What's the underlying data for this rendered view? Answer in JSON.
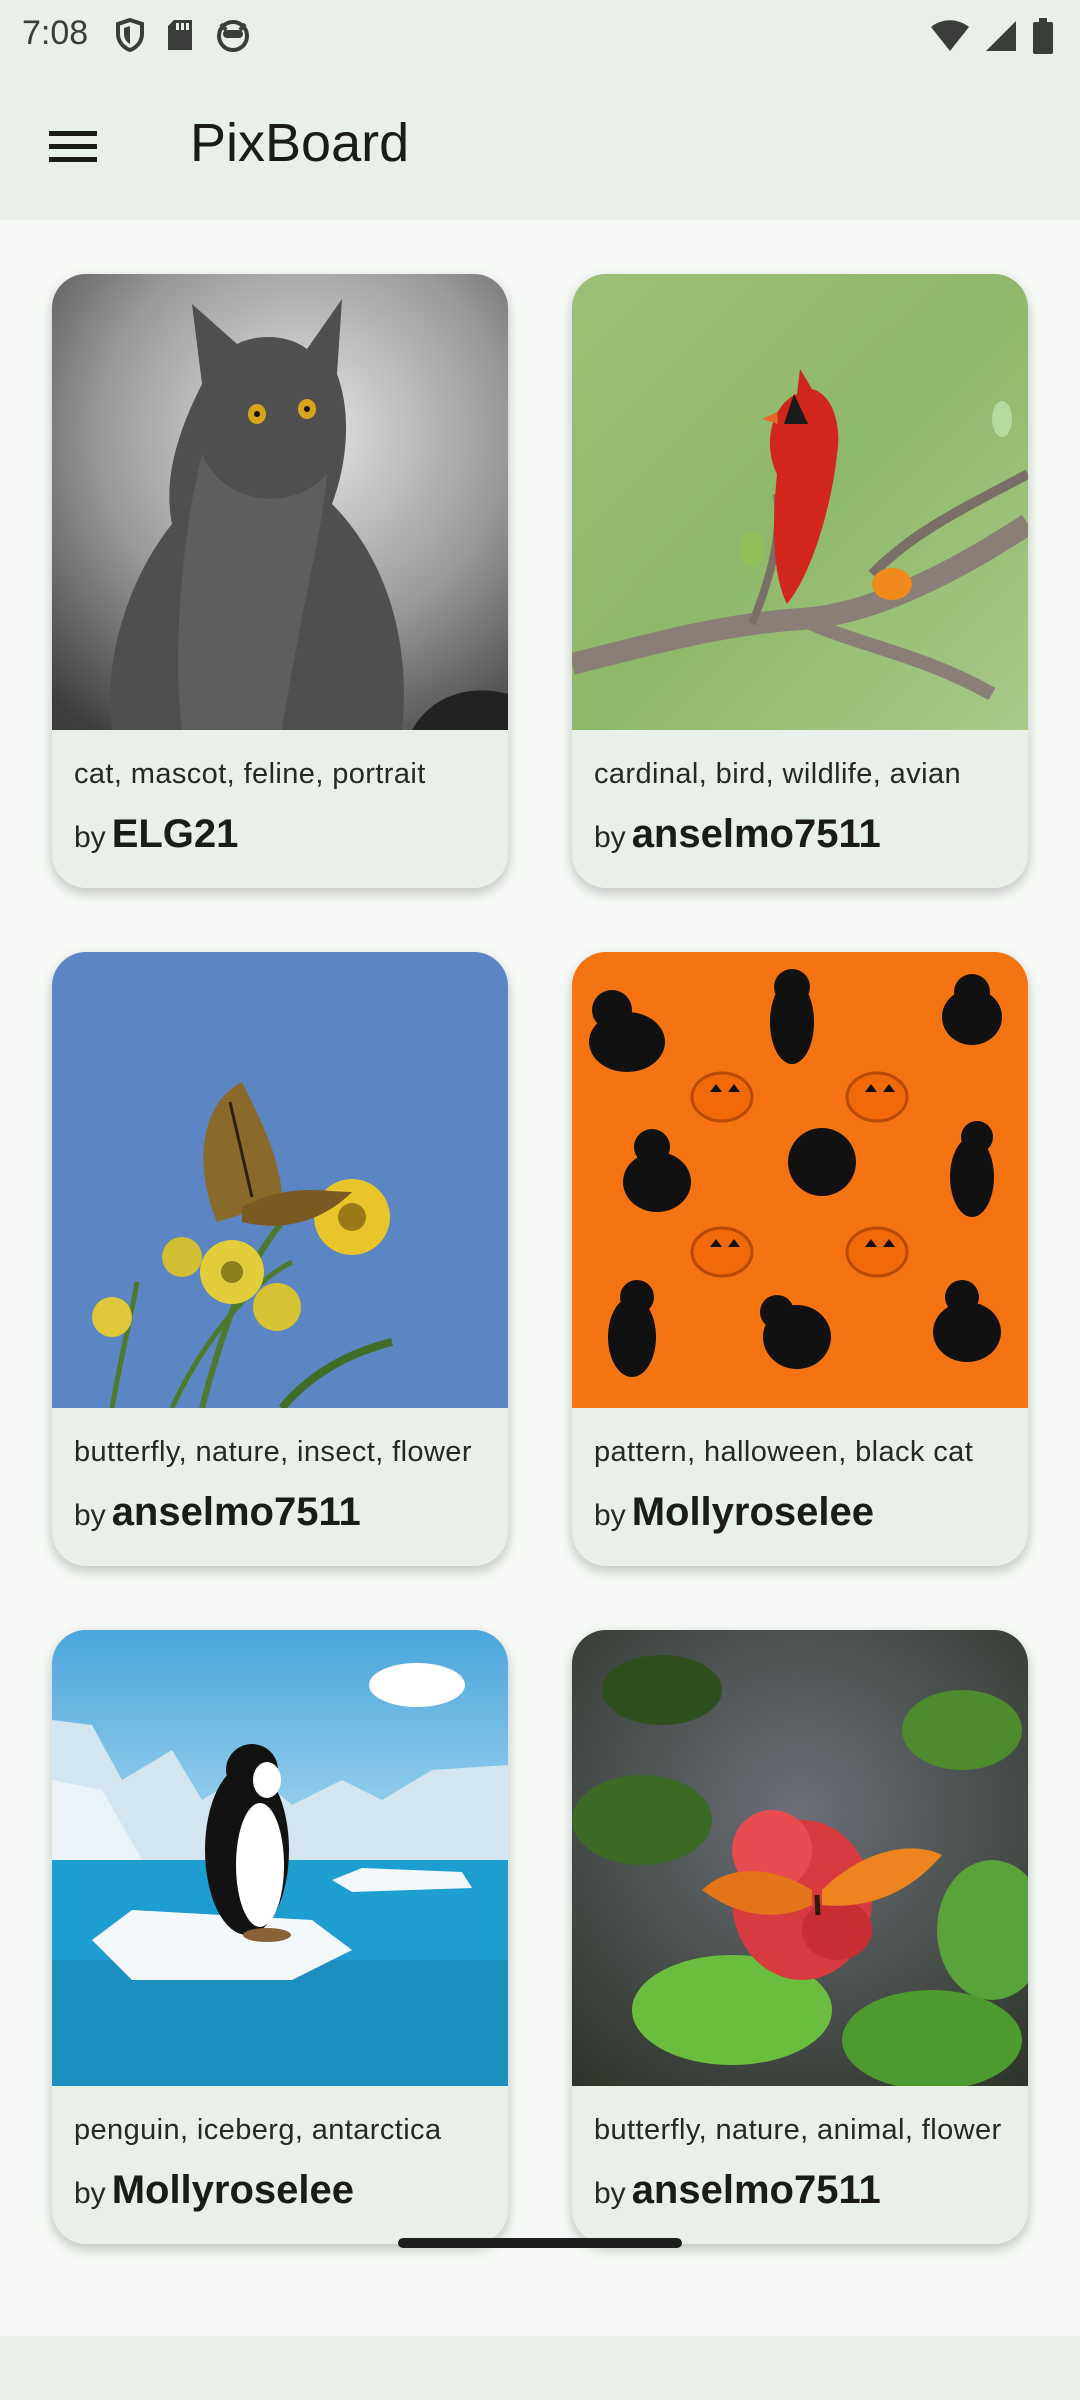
{
  "status_bar": {
    "time": "7:08",
    "left_icons": [
      "shield-icon",
      "sd-card-icon",
      "face-icon"
    ],
    "right_icons": [
      "wifi-icon",
      "signal-icon",
      "battery-icon"
    ]
  },
  "app_bar": {
    "menu_icon": "hamburger-menu-icon",
    "title": "PixBoard",
    "background": "#e9f0e8"
  },
  "by_label": "by",
  "cards": [
    {
      "tags": "cat, mascot, feline, portrait",
      "author": "ELG21",
      "image": "gray cat portrait"
    },
    {
      "tags": "cardinal, bird, wildlife, avian",
      "author": "anselmo7511",
      "image": "red cardinal on branch"
    },
    {
      "tags": "butterfly, nature, insect, flower",
      "author": "anselmo7511",
      "image": "butterfly on yellow flowers"
    },
    {
      "tags": "pattern, halloween, black cat",
      "author": "Mollyroselee",
      "image": "halloween black cat pattern"
    },
    {
      "tags": "penguin, iceberg, antarctica",
      "author": "Mollyroselee",
      "image": "penguin on iceberg illustration"
    },
    {
      "tags": "butterfly, nature, animal, flower",
      "author": "anselmo7511",
      "image": "orange butterfly on red flower"
    }
  ]
}
